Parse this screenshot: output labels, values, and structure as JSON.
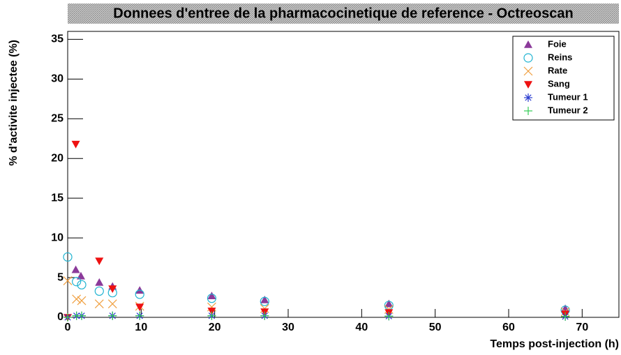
{
  "chart_data": {
    "type": "scatter",
    "title": "Donnees d'entree de la pharmacocinetique de reference - Octreoscan",
    "x_label": "Temps post-injection (h)",
    "y_label": "% d'activite injectee (%)",
    "xlim": [
      0,
      75
    ],
    "xticks": [
      0,
      10,
      20,
      30,
      40,
      50,
      60,
      70
    ],
    "ylim": [
      0,
      36
    ],
    "yticks": [
      0,
      5,
      10,
      15,
      20,
      25,
      30,
      35
    ],
    "legend": "top-right",
    "series": [
      {
        "name": "Foie",
        "color": "#8b3a9a",
        "marker": "triangle-up",
        "x": [
          1.1,
          1.8,
          4.3,
          6.1,
          9.8,
          19.6,
          26.8,
          43.7,
          67.7
        ],
        "values": [
          6.0,
          5.2,
          4.4,
          3.9,
          3.4,
          2.7,
          2.2,
          1.7,
          1.1
        ]
      },
      {
        "name": "Reins",
        "color": "#1fb3d1",
        "marker": "circle",
        "x": [
          0,
          1.2,
          1.9,
          4.3,
          6.1,
          9.8,
          19.6,
          26.8,
          43.7,
          67.7
        ],
        "values": [
          7.6,
          4.5,
          4.1,
          3.3,
          3.1,
          2.9,
          2.4,
          2.0,
          1.5,
          0.9
        ]
      },
      {
        "name": "Rate",
        "color": "#f0a040",
        "marker": "cross",
        "x": [
          0,
          1.2,
          1.9,
          4.3,
          6.1,
          9.8,
          19.6,
          26.8,
          43.7,
          67.7
        ],
        "values": [
          4.6,
          2.3,
          2.1,
          1.7,
          1.7,
          1.4,
          1.3,
          1.1,
          1.0,
          0.7
        ]
      },
      {
        "name": "Sang",
        "color": "#ee1111",
        "marker": "triangle-down",
        "x": [
          0,
          1.1,
          4.3,
          6.1,
          9.8,
          19.6,
          26.8,
          43.7,
          67.7
        ],
        "values": [
          0,
          21.8,
          7.1,
          3.6,
          1.3,
          0.8,
          0.7,
          0.6,
          0.4
        ]
      },
      {
        "name": "Tumeur 1",
        "color": "#2a3cd0",
        "marker": "star",
        "x": [
          0,
          1.2,
          1.9,
          6.1,
          9.8,
          19.6,
          26.8,
          43.7,
          67.7
        ],
        "values": [
          0,
          0.2,
          0.2,
          0.2,
          0.2,
          0.2,
          0.2,
          0.15,
          0.1
        ]
      },
      {
        "name": "Tumeur 2",
        "color": "#33cc55",
        "marker": "plus",
        "x": [
          0,
          1.2,
          1.9,
          6.1,
          9.8,
          19.6,
          26.8,
          43.7,
          67.7
        ],
        "values": [
          0,
          0.2,
          0.2,
          0.2,
          0.2,
          0.2,
          0.2,
          0.15,
          0.1
        ]
      }
    ]
  }
}
